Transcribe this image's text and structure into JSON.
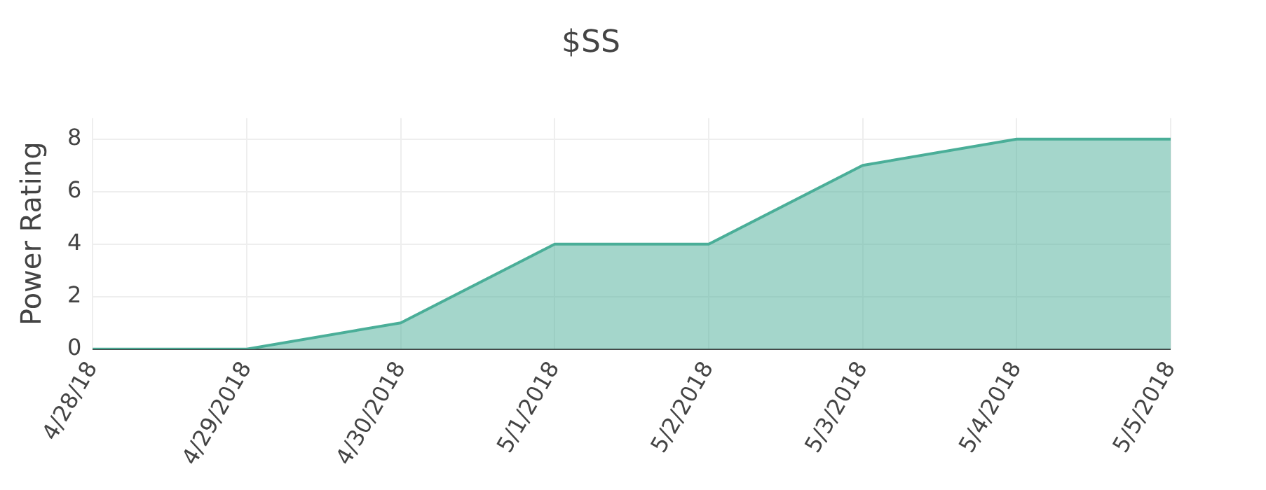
{
  "chart_data": {
    "type": "area",
    "title": "$SS",
    "ylabel": "Power Rating",
    "categories": [
      "4/28/18",
      "4/29/2018",
      "4/30/2018",
      "5/1/2018",
      "5/2/2018",
      "5/3/2018",
      "5/4/2018",
      "5/5/2018"
    ],
    "series": [
      {
        "color": "#4aae98",
        "values": [
          0,
          0,
          1,
          4,
          4,
          7,
          8,
          8
        ]
      }
    ],
    "ylim": [
      0,
      8.8
    ],
    "yticks": [
      0,
      2,
      4,
      6,
      8
    ],
    "grid": true,
    "legend": false
  }
}
